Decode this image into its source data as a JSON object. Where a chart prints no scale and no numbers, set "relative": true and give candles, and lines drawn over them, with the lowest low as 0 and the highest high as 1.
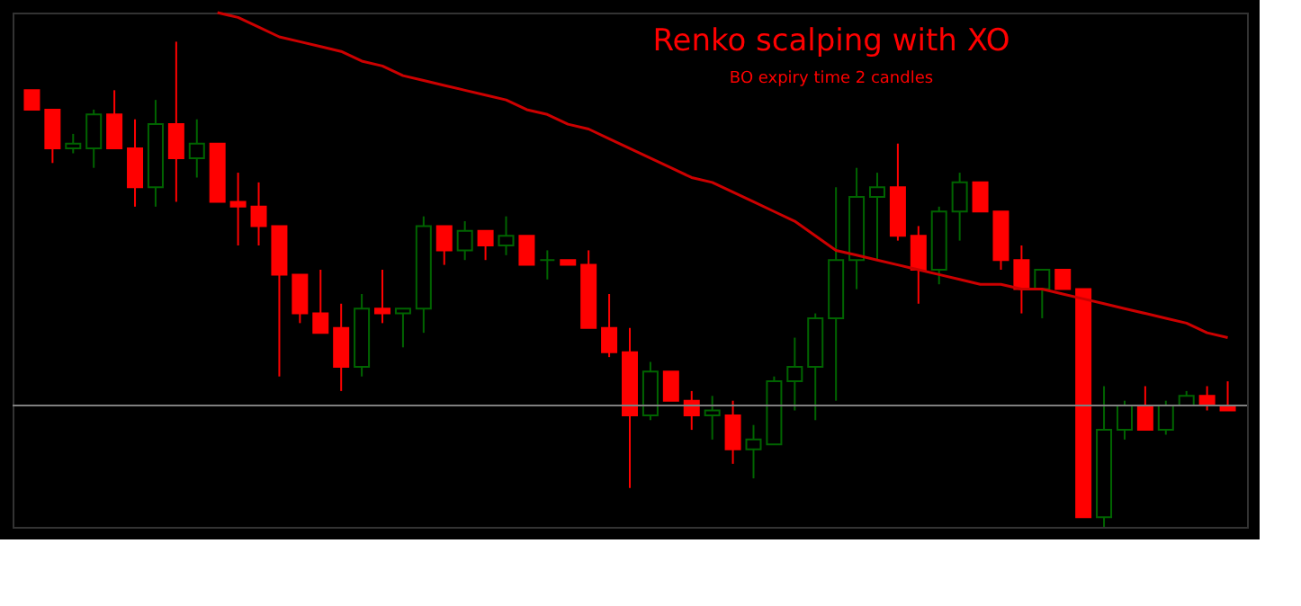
{
  "chart_data": {
    "type": "candlestick",
    "title": "Renko scalping with XO",
    "subtitle": "BO expiry time 2 candles",
    "relative": true,
    "categories": [
      null,
      null,
      null,
      null,
      null,
      null,
      null,
      null,
      null,
      null,
      null,
      null,
      null,
      null,
      null,
      null,
      null,
      null,
      null,
      null,
      null,
      null,
      null,
      null,
      null,
      null,
      null,
      null,
      null,
      null,
      null,
      null,
      null,
      null,
      null,
      null,
      null,
      null,
      null,
      null,
      null,
      null,
      null,
      null,
      null,
      null,
      null,
      null,
      null,
      null,
      null,
      null,
      null,
      null,
      null,
      null,
      null,
      null,
      null
    ],
    "ohlc": [
      [
        0.9,
        0.9,
        0.86,
        0.86
      ],
      [
        0.86,
        0.86,
        0.75,
        0.78
      ],
      [
        0.78,
        0.81,
        0.77,
        0.79
      ],
      [
        0.78,
        0.86,
        0.74,
        0.85
      ],
      [
        0.85,
        0.9,
        0.78,
        0.78
      ],
      [
        0.78,
        0.84,
        0.66,
        0.7
      ],
      [
        0.7,
        0.88,
        0.66,
        0.83
      ],
      [
        0.83,
        1.0,
        0.67,
        0.76
      ],
      [
        0.76,
        0.84,
        0.72,
        0.79
      ],
      [
        0.79,
        0.79,
        0.67,
        0.67
      ],
      [
        0.67,
        0.73,
        0.58,
        0.66
      ],
      [
        0.66,
        0.71,
        0.58,
        0.62
      ],
      [
        0.62,
        0.62,
        0.31,
        0.52
      ],
      [
        0.52,
        0.52,
        0.42,
        0.44
      ],
      [
        0.44,
        0.53,
        0.4,
        0.4
      ],
      [
        0.41,
        0.46,
        0.28,
        0.33
      ],
      [
        0.33,
        0.48,
        0.31,
        0.45
      ],
      [
        0.45,
        0.53,
        0.42,
        0.44
      ],
      [
        0.44,
        0.45,
        0.37,
        0.45
      ],
      [
        0.45,
        0.64,
        0.4,
        0.62
      ],
      [
        0.62,
        0.62,
        0.54,
        0.57
      ],
      [
        0.57,
        0.63,
        0.55,
        0.61
      ],
      [
        0.61,
        0.61,
        0.55,
        0.58
      ],
      [
        0.58,
        0.64,
        0.56,
        0.6
      ],
      [
        0.6,
        0.6,
        0.54,
        0.54
      ],
      [
        0.55,
        0.57,
        0.51,
        0.55
      ],
      [
        0.55,
        0.55,
        0.54,
        0.54
      ],
      [
        0.54,
        0.57,
        0.41,
        0.41
      ],
      [
        0.41,
        0.48,
        0.35,
        0.36
      ],
      [
        0.36,
        0.41,
        0.08,
        0.23
      ],
      [
        0.23,
        0.34,
        0.22,
        0.32
      ],
      [
        0.32,
        0.32,
        0.26,
        0.26
      ],
      [
        0.26,
        0.28,
        0.2,
        0.23
      ],
      [
        0.23,
        0.27,
        0.18,
        0.24
      ],
      [
        0.23,
        0.26,
        0.13,
        0.16
      ],
      [
        0.16,
        0.21,
        0.1,
        0.18
      ],
      [
        0.17,
        0.31,
        0.17,
        0.3
      ],
      [
        0.3,
        0.39,
        0.24,
        0.33
      ],
      [
        0.33,
        0.44,
        0.22,
        0.43
      ],
      [
        0.43,
        0.7,
        0.26,
        0.55
      ],
      [
        0.55,
        0.74,
        0.49,
        0.68
      ],
      [
        0.68,
        0.73,
        0.55,
        0.7
      ],
      [
        0.7,
        0.79,
        0.59,
        0.6
      ],
      [
        0.6,
        0.62,
        0.46,
        0.53
      ],
      [
        0.53,
        0.66,
        0.5,
        0.65
      ],
      [
        0.65,
        0.73,
        0.59,
        0.71
      ],
      [
        0.71,
        0.71,
        0.65,
        0.65
      ],
      [
        0.65,
        0.65,
        0.53,
        0.55
      ],
      [
        0.55,
        0.58,
        0.44,
        0.49
      ],
      [
        0.49,
        0.53,
        0.43,
        0.53
      ],
      [
        0.53,
        0.53,
        0.49,
        0.49
      ],
      [
        0.49,
        0.49,
        0.02,
        0.02
      ],
      [
        0.02,
        0.29,
        0,
        0.2
      ],
      [
        0.2,
        0.26,
        0.18,
        0.25
      ],
      [
        0.25,
        0.29,
        0.2,
        0.2
      ],
      [
        0.2,
        0.26,
        0.19,
        0.25
      ],
      [
        0.25,
        0.28,
        0.25,
        0.27
      ],
      [
        0.27,
        0.29,
        0.24,
        0.25
      ],
      [
        0.25,
        0.3,
        0.24,
        0.24
      ]
    ],
    "colors": [
      "#ff0000",
      "#ff0000",
      "#006400",
      "#006400",
      "#ff0000",
      "#ff0000",
      "#006400",
      "#ff0000",
      "#006400",
      "#ff0000",
      "#ff0000",
      "#ff0000",
      "#ff0000",
      "#ff0000",
      "#ff0000",
      "#ff0000",
      "#006400",
      "#ff0000",
      "#006400",
      "#006400",
      "#ff0000",
      "#006400",
      "#ff0000",
      "#006400",
      "#ff0000",
      "#006400",
      "#ff0000",
      "#ff0000",
      "#ff0000",
      "#ff0000",
      "#006400",
      "#ff0000",
      "#ff0000",
      "#006400",
      "#ff0000",
      "#006400",
      "#006400",
      "#006400",
      "#006400",
      "#006400",
      "#006400",
      "#006400",
      "#ff0000",
      "#ff0000",
      "#006400",
      "#006400",
      "#ff0000",
      "#ff0000",
      "#ff0000",
      "#006400",
      "#ff0000",
      "#ff0000",
      "#006400",
      "#006400",
      "#ff0000",
      "#006400",
      "#006400",
      "#ff0000",
      "#ff0000"
    ],
    "series": [
      {
        "type": "line",
        "color": "#cc0000",
        "values": [
          null,
          null,
          null,
          null,
          null,
          null,
          null,
          null,
          null,
          1.06,
          1.05,
          1.03,
          1.01,
          1.0,
          0.99,
          0.98,
          0.96,
          0.95,
          0.93,
          0.92,
          0.91,
          0.9,
          0.89,
          0.88,
          0.86,
          0.85,
          0.83,
          0.82,
          0.8,
          0.78,
          0.76,
          0.74,
          0.72,
          0.71,
          0.69,
          0.67,
          0.65,
          0.63,
          0.6,
          0.57,
          0.56,
          0.55,
          0.54,
          0.53,
          0.52,
          0.51,
          0.5,
          0.5,
          0.49,
          0.49,
          0.48,
          0.47,
          0.46,
          0.45,
          0.44,
          0.43,
          0.42,
          0.4,
          0.39
        ]
      }
    ],
    "ref_lines": [
      {
        "axis": "y",
        "value": 0.25,
        "label": null,
        "color": "#808080"
      }
    ]
  }
}
